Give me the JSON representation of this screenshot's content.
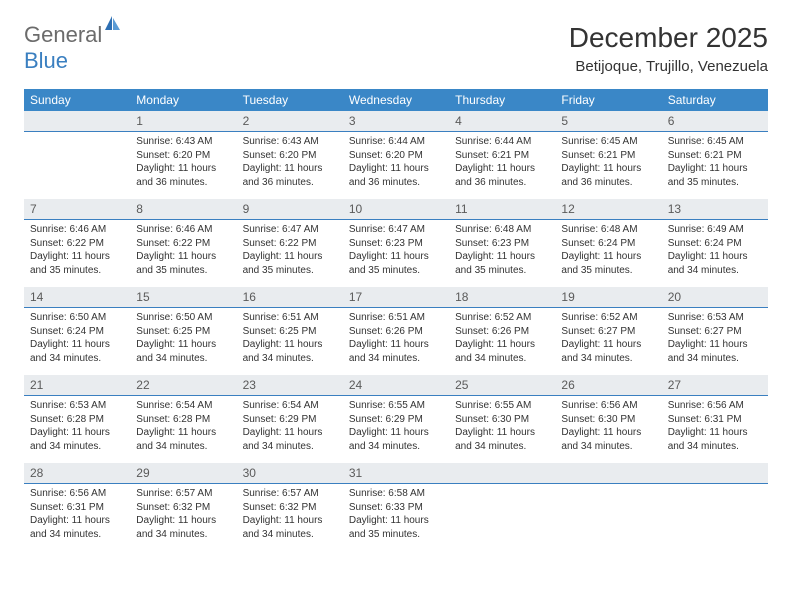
{
  "logo": {
    "text1": "General",
    "text2": "Blue",
    "icon_color": "#2d6fb3"
  },
  "title": "December 2025",
  "location": "Betijoque, Trujillo, Venezuela",
  "colors": {
    "header_bg": "#3a87c7",
    "daynum_bg": "#e9ecef",
    "daynum_border": "#3a7fc0",
    "text": "#333333"
  },
  "days_of_week": [
    "Sunday",
    "Monday",
    "Tuesday",
    "Wednesday",
    "Thursday",
    "Friday",
    "Saturday"
  ],
  "weeks": [
    {
      "nums": [
        "",
        "1",
        "2",
        "3",
        "4",
        "5",
        "6"
      ],
      "cells": [
        null,
        {
          "sunrise": "Sunrise: 6:43 AM",
          "sunset": "Sunset: 6:20 PM",
          "day1": "Daylight: 11 hours",
          "day2": "and 36 minutes."
        },
        {
          "sunrise": "Sunrise: 6:43 AM",
          "sunset": "Sunset: 6:20 PM",
          "day1": "Daylight: 11 hours",
          "day2": "and 36 minutes."
        },
        {
          "sunrise": "Sunrise: 6:44 AM",
          "sunset": "Sunset: 6:20 PM",
          "day1": "Daylight: 11 hours",
          "day2": "and 36 minutes."
        },
        {
          "sunrise": "Sunrise: 6:44 AM",
          "sunset": "Sunset: 6:21 PM",
          "day1": "Daylight: 11 hours",
          "day2": "and 36 minutes."
        },
        {
          "sunrise": "Sunrise: 6:45 AM",
          "sunset": "Sunset: 6:21 PM",
          "day1": "Daylight: 11 hours",
          "day2": "and 36 minutes."
        },
        {
          "sunrise": "Sunrise: 6:45 AM",
          "sunset": "Sunset: 6:21 PM",
          "day1": "Daylight: 11 hours",
          "day2": "and 35 minutes."
        }
      ]
    },
    {
      "nums": [
        "7",
        "8",
        "9",
        "10",
        "11",
        "12",
        "13"
      ],
      "cells": [
        {
          "sunrise": "Sunrise: 6:46 AM",
          "sunset": "Sunset: 6:22 PM",
          "day1": "Daylight: 11 hours",
          "day2": "and 35 minutes."
        },
        {
          "sunrise": "Sunrise: 6:46 AM",
          "sunset": "Sunset: 6:22 PM",
          "day1": "Daylight: 11 hours",
          "day2": "and 35 minutes."
        },
        {
          "sunrise": "Sunrise: 6:47 AM",
          "sunset": "Sunset: 6:22 PM",
          "day1": "Daylight: 11 hours",
          "day2": "and 35 minutes."
        },
        {
          "sunrise": "Sunrise: 6:47 AM",
          "sunset": "Sunset: 6:23 PM",
          "day1": "Daylight: 11 hours",
          "day2": "and 35 minutes."
        },
        {
          "sunrise": "Sunrise: 6:48 AM",
          "sunset": "Sunset: 6:23 PM",
          "day1": "Daylight: 11 hours",
          "day2": "and 35 minutes."
        },
        {
          "sunrise": "Sunrise: 6:48 AM",
          "sunset": "Sunset: 6:24 PM",
          "day1": "Daylight: 11 hours",
          "day2": "and 35 minutes."
        },
        {
          "sunrise": "Sunrise: 6:49 AM",
          "sunset": "Sunset: 6:24 PM",
          "day1": "Daylight: 11 hours",
          "day2": "and 34 minutes."
        }
      ]
    },
    {
      "nums": [
        "14",
        "15",
        "16",
        "17",
        "18",
        "19",
        "20"
      ],
      "cells": [
        {
          "sunrise": "Sunrise: 6:50 AM",
          "sunset": "Sunset: 6:24 PM",
          "day1": "Daylight: 11 hours",
          "day2": "and 34 minutes."
        },
        {
          "sunrise": "Sunrise: 6:50 AM",
          "sunset": "Sunset: 6:25 PM",
          "day1": "Daylight: 11 hours",
          "day2": "and 34 minutes."
        },
        {
          "sunrise": "Sunrise: 6:51 AM",
          "sunset": "Sunset: 6:25 PM",
          "day1": "Daylight: 11 hours",
          "day2": "and 34 minutes."
        },
        {
          "sunrise": "Sunrise: 6:51 AM",
          "sunset": "Sunset: 6:26 PM",
          "day1": "Daylight: 11 hours",
          "day2": "and 34 minutes."
        },
        {
          "sunrise": "Sunrise: 6:52 AM",
          "sunset": "Sunset: 6:26 PM",
          "day1": "Daylight: 11 hours",
          "day2": "and 34 minutes."
        },
        {
          "sunrise": "Sunrise: 6:52 AM",
          "sunset": "Sunset: 6:27 PM",
          "day1": "Daylight: 11 hours",
          "day2": "and 34 minutes."
        },
        {
          "sunrise": "Sunrise: 6:53 AM",
          "sunset": "Sunset: 6:27 PM",
          "day1": "Daylight: 11 hours",
          "day2": "and 34 minutes."
        }
      ]
    },
    {
      "nums": [
        "21",
        "22",
        "23",
        "24",
        "25",
        "26",
        "27"
      ],
      "cells": [
        {
          "sunrise": "Sunrise: 6:53 AM",
          "sunset": "Sunset: 6:28 PM",
          "day1": "Daylight: 11 hours",
          "day2": "and 34 minutes."
        },
        {
          "sunrise": "Sunrise: 6:54 AM",
          "sunset": "Sunset: 6:28 PM",
          "day1": "Daylight: 11 hours",
          "day2": "and 34 minutes."
        },
        {
          "sunrise": "Sunrise: 6:54 AM",
          "sunset": "Sunset: 6:29 PM",
          "day1": "Daylight: 11 hours",
          "day2": "and 34 minutes."
        },
        {
          "sunrise": "Sunrise: 6:55 AM",
          "sunset": "Sunset: 6:29 PM",
          "day1": "Daylight: 11 hours",
          "day2": "and 34 minutes."
        },
        {
          "sunrise": "Sunrise: 6:55 AM",
          "sunset": "Sunset: 6:30 PM",
          "day1": "Daylight: 11 hours",
          "day2": "and 34 minutes."
        },
        {
          "sunrise": "Sunrise: 6:56 AM",
          "sunset": "Sunset: 6:30 PM",
          "day1": "Daylight: 11 hours",
          "day2": "and 34 minutes."
        },
        {
          "sunrise": "Sunrise: 6:56 AM",
          "sunset": "Sunset: 6:31 PM",
          "day1": "Daylight: 11 hours",
          "day2": "and 34 minutes."
        }
      ]
    },
    {
      "nums": [
        "28",
        "29",
        "30",
        "31",
        "",
        "",
        ""
      ],
      "cells": [
        {
          "sunrise": "Sunrise: 6:56 AM",
          "sunset": "Sunset: 6:31 PM",
          "day1": "Daylight: 11 hours",
          "day2": "and 34 minutes."
        },
        {
          "sunrise": "Sunrise: 6:57 AM",
          "sunset": "Sunset: 6:32 PM",
          "day1": "Daylight: 11 hours",
          "day2": "and 34 minutes."
        },
        {
          "sunrise": "Sunrise: 6:57 AM",
          "sunset": "Sunset: 6:32 PM",
          "day1": "Daylight: 11 hours",
          "day2": "and 34 minutes."
        },
        {
          "sunrise": "Sunrise: 6:58 AM",
          "sunset": "Sunset: 6:33 PM",
          "day1": "Daylight: 11 hours",
          "day2": "and 35 minutes."
        },
        null,
        null,
        null
      ]
    }
  ]
}
